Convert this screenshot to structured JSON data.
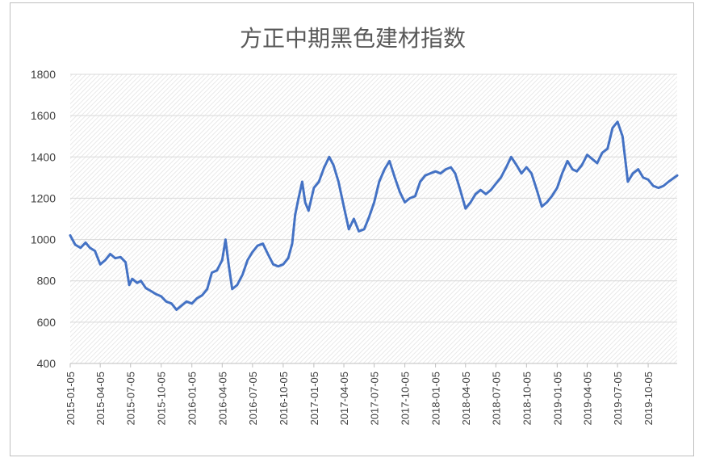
{
  "chart_data": {
    "type": "line",
    "title": "方正中期黑色建材指数",
    "xlabel": "",
    "ylabel": "",
    "ylim": [
      400,
      1800
    ],
    "y_ticks": [
      400,
      600,
      800,
      1000,
      1200,
      1400,
      1600,
      1800
    ],
    "x_ticks": [
      "2015-01-05",
      "2015-04-05",
      "2015-07-05",
      "2015-10-05",
      "2016-01-05",
      "2016-04-05",
      "2016-07-05",
      "2016-10-05",
      "2017-01-05",
      "2017-04-05",
      "2017-07-05",
      "2017-10-05",
      "2018-01-05",
      "2018-04-05",
      "2018-07-05",
      "2018-10-05",
      "2019-01-05",
      "2019-04-05",
      "2019-07-05",
      "2019-10-05"
    ],
    "xlim": [
      "2015-01-05",
      "2019-12-31"
    ],
    "grid": true,
    "legend": "none",
    "line_color": "#4472c4",
    "series": [
      {
        "x": [
          "2015-01-05",
          "2015-01-20",
          "2015-02-05",
          "2015-02-20",
          "2015-03-05",
          "2015-03-20",
          "2015-04-05",
          "2015-04-20",
          "2015-05-05",
          "2015-05-20",
          "2015-06-05",
          "2015-06-20",
          "2015-07-01",
          "2015-07-10",
          "2015-07-25",
          "2015-08-05",
          "2015-08-20",
          "2015-09-05",
          "2015-09-20",
          "2015-10-05",
          "2015-10-20",
          "2015-11-05",
          "2015-11-20",
          "2015-12-05",
          "2015-12-20",
          "2016-01-05",
          "2016-01-20",
          "2016-02-05",
          "2016-02-20",
          "2016-03-05",
          "2016-03-20",
          "2016-04-05",
          "2016-04-15",
          "2016-04-25",
          "2016-05-05",
          "2016-05-20",
          "2016-06-05",
          "2016-06-20",
          "2016-07-05",
          "2016-07-20",
          "2016-08-05",
          "2016-08-20",
          "2016-09-05",
          "2016-09-20",
          "2016-10-05",
          "2016-10-20",
          "2016-11-01",
          "2016-11-10",
          "2016-11-20",
          "2016-12-01",
          "2016-12-10",
          "2016-12-20",
          "2017-01-05",
          "2017-01-20",
          "2017-02-05",
          "2017-02-20",
          "2017-03-05",
          "2017-03-20",
          "2017-04-05",
          "2017-04-20",
          "2017-05-05",
          "2017-05-20",
          "2017-06-05",
          "2017-06-20",
          "2017-07-05",
          "2017-07-20",
          "2017-08-05",
          "2017-08-20",
          "2017-09-05",
          "2017-09-20",
          "2017-10-05",
          "2017-10-20",
          "2017-11-05",
          "2017-11-20",
          "2017-12-05",
          "2017-12-20",
          "2018-01-05",
          "2018-01-20",
          "2018-02-05",
          "2018-02-20",
          "2018-03-05",
          "2018-03-20",
          "2018-04-05",
          "2018-04-20",
          "2018-05-05",
          "2018-05-20",
          "2018-06-05",
          "2018-06-20",
          "2018-07-05",
          "2018-07-20",
          "2018-08-05",
          "2018-08-20",
          "2018-09-05",
          "2018-09-20",
          "2018-10-05",
          "2018-10-20",
          "2018-11-05",
          "2018-11-20",
          "2018-12-05",
          "2018-12-20",
          "2019-01-05",
          "2019-01-20",
          "2019-02-05",
          "2019-02-20",
          "2019-03-05",
          "2019-03-20",
          "2019-04-05",
          "2019-04-20",
          "2019-05-05",
          "2019-05-20",
          "2019-06-05",
          "2019-06-20",
          "2019-07-05",
          "2019-07-20",
          "2019-08-05",
          "2019-08-20",
          "2019-09-05",
          "2019-09-20",
          "2019-10-05",
          "2019-10-20",
          "2019-11-05",
          "2019-11-20",
          "2019-12-05",
          "2019-12-31"
        ],
        "y": [
          1020,
          975,
          960,
          985,
          960,
          945,
          880,
          900,
          930,
          910,
          915,
          890,
          780,
          810,
          790,
          800,
          765,
          750,
          735,
          725,
          700,
          690,
          660,
          680,
          700,
          690,
          715,
          730,
          760,
          840,
          850,
          900,
          1000,
          870,
          760,
          780,
          830,
          900,
          940,
          970,
          980,
          930,
          880,
          870,
          880,
          910,
          980,
          1120,
          1200,
          1280,
          1180,
          1140,
          1250,
          1280,
          1350,
          1400,
          1360,
          1280,
          1160,
          1050,
          1100,
          1040,
          1050,
          1110,
          1180,
          1280,
          1340,
          1380,
          1300,
          1230,
          1180,
          1200,
          1210,
          1280,
          1310,
          1320,
          1330,
          1320,
          1340,
          1350,
          1320,
          1240,
          1150,
          1180,
          1220,
          1240,
          1220,
          1240,
          1270,
          1300,
          1350,
          1400,
          1360,
          1320,
          1350,
          1320,
          1240,
          1160,
          1180,
          1210,
          1250,
          1320,
          1380,
          1340,
          1330,
          1360,
          1410,
          1390,
          1370,
          1420,
          1440,
          1540,
          1570,
          1500,
          1280,
          1320,
          1340,
          1300,
          1290,
          1260,
          1250,
          1260,
          1280,
          1310
        ]
      }
    ]
  }
}
